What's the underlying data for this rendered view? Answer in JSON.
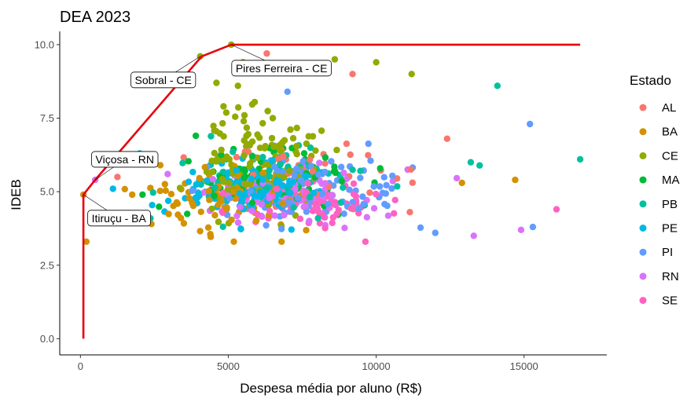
{
  "chart_data": {
    "type": "scatter",
    "title": "DEA 2023",
    "xlabel": "Despesa média por aluno (R$)",
    "ylabel": "IDEB",
    "xlim": [
      -700,
      17800
    ],
    "ylim": [
      -0.55,
      10.45
    ],
    "x_ticks": [
      0,
      5000,
      10000,
      15000
    ],
    "x_tick_labels": [
      "0",
      "5000",
      "10000",
      "15000"
    ],
    "y_ticks": [
      0,
      2.5,
      5,
      7.5,
      10
    ],
    "y_tick_labels": [
      "0.0",
      "2.5",
      "5.0",
      "7.5",
      "10.0"
    ],
    "grid": false,
    "legend": {
      "title": "Estado",
      "placement": "right",
      "entries": [
        {
          "name": "AL",
          "color": "#F8766D"
        },
        {
          "name": "BA",
          "color": "#D39200"
        },
        {
          "name": "CE",
          "color": "#93AA00"
        },
        {
          "name": "MA",
          "color": "#00BA38"
        },
        {
          "name": "PB",
          "color": "#00C19F"
        },
        {
          "name": "PE",
          "color": "#00B9E3"
        },
        {
          "name": "PI",
          "color": "#619CFF"
        },
        {
          "name": "RN",
          "color": "#DB72FB"
        },
        {
          "name": "SE",
          "color": "#FF61C3"
        }
      ]
    },
    "frontier": {
      "color": "#E8000B",
      "points": [
        [
          100,
          0.0
        ],
        [
          100,
          4.9
        ],
        [
          500,
          5.4
        ],
        [
          4100,
          9.6
        ],
        [
          5100,
          10.0
        ],
        [
          16900,
          10.0
        ]
      ]
    },
    "annotations": [
      {
        "label": "Sobral - CE",
        "x": 2800,
        "y": 8.8
      },
      {
        "label": "Pires Ferreira - CE",
        "x": 6800,
        "y": 9.2
      },
      {
        "label": "Viçosa - RN",
        "x": 1500,
        "y": 6.1
      },
      {
        "label": "Itiruçu - BA",
        "x": 1300,
        "y": 4.1
      }
    ],
    "highlight_points": [
      {
        "state": "CE",
        "x": 4050,
        "y": 9.6
      },
      {
        "state": "CE",
        "x": 5100,
        "y": 10.0
      },
      {
        "state": "BA",
        "x": 100,
        "y": 4.9
      },
      {
        "state": "BA",
        "x": 200,
        "y": 3.3
      },
      {
        "state": "RN",
        "x": 500,
        "y": 5.4
      },
      {
        "state": "PE",
        "x": 1100,
        "y": 5.1
      },
      {
        "state": "AL",
        "x": 1250,
        "y": 5.5
      },
      {
        "state": "BA",
        "x": 1750,
        "y": 4.9
      },
      {
        "state": "BA",
        "x": 2400,
        "y": 3.9
      },
      {
        "state": "CE",
        "x": 4600,
        "y": 8.7
      },
      {
        "state": "CE",
        "x": 5500,
        "y": 9.4
      },
      {
        "state": "AL",
        "x": 6300,
        "y": 9.7
      },
      {
        "state": "CE",
        "x": 8600,
        "y": 9.5
      },
      {
        "state": "AL",
        "x": 9200,
        "y": 9.0
      },
      {
        "state": "CE",
        "x": 10000,
        "y": 9.4
      },
      {
        "state": "CE",
        "x": 11200,
        "y": 9.0
      },
      {
        "state": "PB",
        "x": 14100,
        "y": 8.6
      },
      {
        "state": "PI",
        "x": 15200,
        "y": 7.3
      },
      {
        "state": "PB",
        "x": 16900,
        "y": 6.1
      },
      {
        "state": "PI",
        "x": 15300,
        "y": 3.8
      },
      {
        "state": "RN",
        "x": 14900,
        "y": 3.7
      },
      {
        "state": "SE",
        "x": 16100,
        "y": 4.4
      },
      {
        "state": "RN",
        "x": 13300,
        "y": 3.5
      },
      {
        "state": "BA",
        "x": 14700,
        "y": 5.4
      },
      {
        "state": "AL",
        "x": 12400,
        "y": 6.8
      },
      {
        "state": "PB",
        "x": 13200,
        "y": 6.0
      },
      {
        "state": "BA",
        "x": 12900,
        "y": 5.3
      },
      {
        "state": "PI",
        "x": 12000,
        "y": 3.6
      },
      {
        "state": "BA",
        "x": 6800,
        "y": 3.3
      },
      {
        "state": "BA",
        "x": 4400,
        "y": 3.5
      },
      {
        "state": "PE",
        "x": 2000,
        "y": 6.3
      },
      {
        "state": "BA",
        "x": 2700,
        "y": 5.9
      },
      {
        "state": "RN",
        "x": 2950,
        "y": 5.6
      },
      {
        "state": "MA",
        "x": 2100,
        "y": 4.9
      },
      {
        "state": "BA",
        "x": 3400,
        "y": 4.1
      },
      {
        "state": "MA",
        "x": 3900,
        "y": 6.9
      },
      {
        "state": "PI",
        "x": 7000,
        "y": 8.4
      }
    ],
    "cloud_clusters": [
      {
        "state": "CE",
        "cx": 5900,
        "cy": 6.2,
        "sx": 1100,
        "sy": 0.9,
        "n": 120
      },
      {
        "state": "BA",
        "cx": 5200,
        "cy": 4.8,
        "sx": 1500,
        "sy": 0.5,
        "n": 90
      },
      {
        "state": "MA",
        "cx": 6400,
        "cy": 5.3,
        "sx": 1500,
        "sy": 0.55,
        "n": 80
      },
      {
        "state": "PB",
        "cx": 6700,
        "cy": 5.4,
        "sx": 1700,
        "sy": 0.6,
        "n": 80
      },
      {
        "state": "PE",
        "cx": 5800,
        "cy": 5.1,
        "sx": 1000,
        "sy": 0.5,
        "n": 130
      },
      {
        "state": "PI",
        "cx": 7400,
        "cy": 5.2,
        "sx": 1800,
        "sy": 0.6,
        "n": 110
      },
      {
        "state": "RN",
        "cx": 7100,
        "cy": 4.9,
        "sx": 1600,
        "sy": 0.45,
        "n": 90
      },
      {
        "state": "SE",
        "cx": 7400,
        "cy": 4.6,
        "sx": 1300,
        "sy": 0.4,
        "n": 90
      },
      {
        "state": "AL",
        "cx": 7800,
        "cy": 5.6,
        "sx": 2000,
        "sy": 0.7,
        "n": 40
      }
    ]
  }
}
